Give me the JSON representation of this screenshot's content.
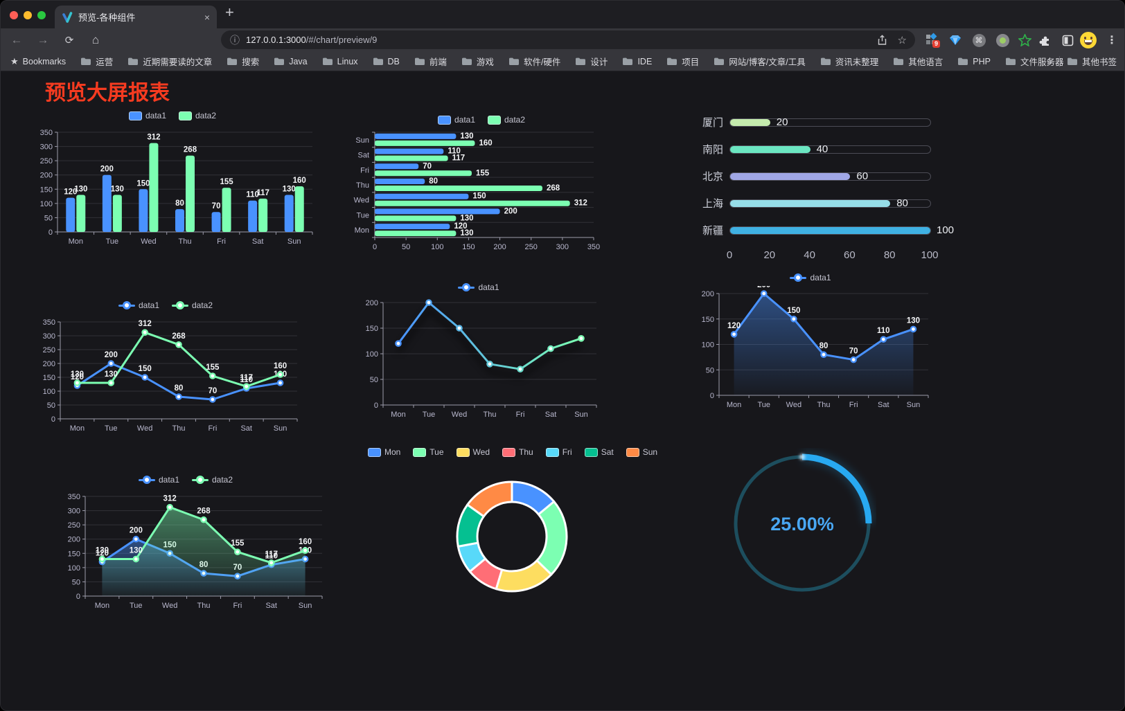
{
  "browser": {
    "tab": {
      "title": "预览-各种组件",
      "close": "×",
      "new_tab": "+"
    },
    "nav": {
      "back": "←",
      "forward": "→",
      "reload": "⟳",
      "home": "⌂"
    },
    "omnibox": {
      "info": "ⓘ",
      "host": "127.0.0.1:3000",
      "path": "/#/chart/preview/9",
      "star": "☆"
    },
    "extensions_badge": "9",
    "command_glyph": "⌘",
    "menu": "⋮",
    "bookmarks_bar": {
      "star": "★",
      "label": "Bookmarks",
      "folders": [
        "运营",
        "近期需要读的文章",
        "搜索",
        "Java",
        "Linux",
        "DB",
        "前端",
        "游戏",
        "软件/硬件",
        "设计",
        "IDE",
        "项目",
        "网站/博客/文章/工具",
        "资讯未整理",
        "其他语言",
        "PHP",
        "文件服务器"
      ],
      "overflow": "»",
      "other": "其他书签"
    }
  },
  "page": {
    "title": "预览大屏报表",
    "title_color": "#f63b20"
  },
  "chart_data": [
    {
      "id": "bar-vertical",
      "type": "bar",
      "categories": [
        "Mon",
        "Tue",
        "Wed",
        "Thu",
        "Fri",
        "Sat",
        "Sun"
      ],
      "series": [
        {
          "name": "data1",
          "color": "#4992ff",
          "values": [
            120,
            200,
            150,
            80,
            70,
            110,
            130
          ]
        },
        {
          "name": "data2",
          "color": "#7cffb2",
          "values": [
            130,
            130,
            312,
            268,
            155,
            117,
            160
          ]
        }
      ],
      "ylim": [
        0,
        350
      ],
      "yticks": [
        0,
        50,
        100,
        150,
        200,
        250,
        300,
        350
      ],
      "labels": true,
      "legend_position": "top",
      "grid": true
    },
    {
      "id": "bar-horizontal",
      "type": "bar",
      "orientation": "horizontal",
      "categories_top_to_bottom": [
        "Sun",
        "Sat",
        "Fri",
        "Thu",
        "Wed",
        "Tue",
        "Mon"
      ],
      "series": [
        {
          "name": "data1",
          "color": "#4992ff",
          "values": [
            130,
            110,
            70,
            80,
            150,
            200,
            120
          ]
        },
        {
          "name": "data2",
          "color": "#7cffb2",
          "values": [
            160,
            117,
            155,
            268,
            312,
            130,
            130
          ]
        }
      ],
      "xlim": [
        0,
        350
      ],
      "xticks": [
        0,
        50,
        100,
        150,
        200,
        250,
        300,
        350
      ],
      "labels": true,
      "legend_position": "top",
      "grid": true
    },
    {
      "id": "progress-bars",
      "type": "bar",
      "orientation": "horizontal-progress",
      "categories": [
        "厦门",
        "南阳",
        "北京",
        "上海",
        "新疆"
      ],
      "values": [
        20,
        40,
        60,
        80,
        100
      ],
      "colors": [
        "#c4ebad",
        "#6be6c1",
        "#a0a7e6",
        "#96dee8",
        "#3fb1e3"
      ],
      "xlim": [
        0,
        100
      ],
      "xticks": [
        0,
        20,
        40,
        60,
        80,
        100
      ]
    },
    {
      "id": "line-two-series",
      "type": "line",
      "categories": [
        "Mon",
        "Tue",
        "Wed",
        "Thu",
        "Fri",
        "Sat",
        "Sun"
      ],
      "series": [
        {
          "name": "data1",
          "color": "#4992ff",
          "values": [
            120,
            200,
            150,
            80,
            70,
            110,
            130
          ]
        },
        {
          "name": "data2",
          "color": "#7cffb2",
          "values": [
            130,
            130,
            312,
            268,
            155,
            117,
            160
          ]
        }
      ],
      "ylim": [
        0,
        350
      ],
      "yticks": [
        0,
        50,
        100,
        150,
        200,
        250,
        300,
        350
      ],
      "labels": true,
      "legend_position": "top",
      "grid": true
    },
    {
      "id": "line-gradient",
      "type": "line",
      "categories": [
        "Mon",
        "Tue",
        "Wed",
        "Thu",
        "Fri",
        "Sat",
        "Sun"
      ],
      "series": [
        {
          "name": "data1",
          "color": "#4992ff",
          "color_end": "#7cffb2",
          "values": [
            120,
            200,
            150,
            80,
            70,
            110,
            130
          ]
        }
      ],
      "ylim": [
        0,
        200
      ],
      "yticks": [
        0,
        50,
        100,
        150,
        200
      ],
      "labels": false,
      "shadow": true,
      "legend_position": "top",
      "grid": true
    },
    {
      "id": "area-single",
      "type": "area",
      "categories": [
        "Mon",
        "Tue",
        "Wed",
        "Thu",
        "Fri",
        "Sat",
        "Sun"
      ],
      "series": [
        {
          "name": "data1",
          "color": "#4992ff",
          "values": [
            120,
            200,
            150,
            80,
            70,
            110,
            130
          ]
        }
      ],
      "ylim": [
        0,
        200
      ],
      "yticks": [
        0,
        50,
        100,
        150,
        200
      ],
      "labels": true,
      "legend_position": "top",
      "grid": true
    },
    {
      "id": "area-two-series",
      "type": "area",
      "categories": [
        "Mon",
        "Tue",
        "Wed",
        "Thu",
        "Fri",
        "Sat",
        "Sun"
      ],
      "series": [
        {
          "name": "data1",
          "color": "#4992ff",
          "values": [
            120,
            200,
            150,
            80,
            70,
            110,
            130
          ]
        },
        {
          "name": "data2",
          "color": "#7cffb2",
          "values": [
            130,
            130,
            312,
            268,
            155,
            117,
            160
          ]
        }
      ],
      "ylim": [
        0,
        350
      ],
      "yticks": [
        0,
        50,
        100,
        150,
        200,
        250,
        300,
        350
      ],
      "labels": true,
      "legend_position": "top",
      "grid": true
    },
    {
      "id": "donut",
      "type": "pie",
      "categories": [
        "Mon",
        "Tue",
        "Wed",
        "Thu",
        "Fri",
        "Sat",
        "Sun"
      ],
      "values": [
        120,
        200,
        150,
        80,
        70,
        110,
        130
      ],
      "colors": [
        "#4992ff",
        "#7cffb2",
        "#fddd60",
        "#ff6e76",
        "#58d9f9",
        "#05c091",
        "#ff8a45"
      ],
      "legend_position": "top",
      "inner_radius_pct": 63,
      "border_color": "#ffffff"
    },
    {
      "id": "gauge",
      "type": "gauge",
      "percent": 25,
      "label": "25.00%",
      "arc_color": "#28a9f1",
      "track_color": "#1d4e5e",
      "text_color": "#49a7f3"
    }
  ]
}
